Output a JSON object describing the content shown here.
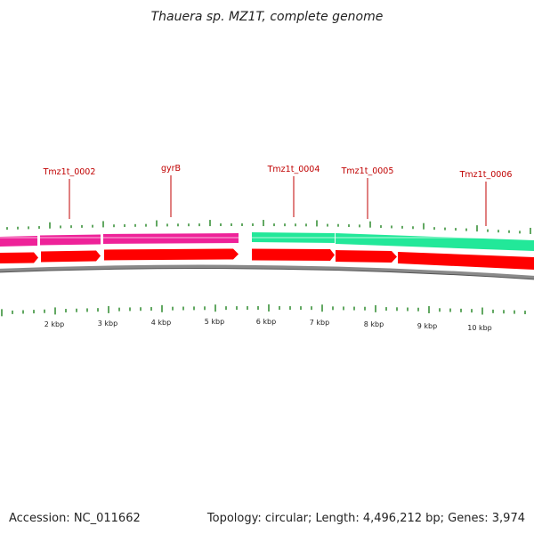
{
  "title": "Thauera sp. MZ1T, complete genome",
  "footer": {
    "accession": "Accession: NC_011662",
    "summary": "Topology: circular; Length: 4,496,212 bp; Genes: 3,974"
  },
  "colors": {
    "tick": "#2e8b2e",
    "label": "#c00000",
    "cds_fwd": "#ff0000",
    "magenta_feature": "#ee2299",
    "green_feature": "#22e899",
    "backbone": "#8a8a8a"
  },
  "axis": {
    "tick_labels": [
      "2 kbp",
      "3 kbp",
      "4 kbp",
      "5 kbp",
      "6 kbp",
      "7 kbp",
      "8 kbp",
      "9 kbp",
      "10 kbp"
    ]
  },
  "genes": [
    {
      "label": "Tmz1t_0002"
    },
    {
      "label": "gyrB"
    },
    {
      "label": "Tmz1t_0004"
    },
    {
      "label": "Tmz1t_0005"
    },
    {
      "label": "Tmz1t_0006"
    }
  ]
}
